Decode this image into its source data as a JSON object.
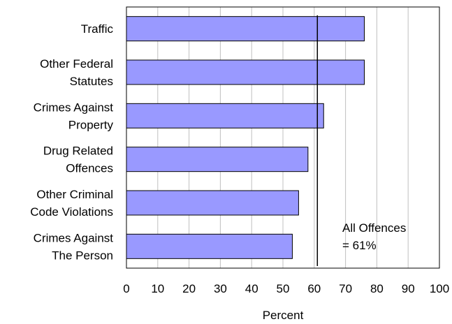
{
  "chart_data": {
    "type": "bar",
    "orientation": "horizontal",
    "categories": [
      [
        "Traffic"
      ],
      [
        "Other Federal",
        "Statutes"
      ],
      [
        "Crimes Against",
        "Property"
      ],
      [
        "Drug Related",
        "Offences"
      ],
      [
        "Other Criminal",
        "Code Violations"
      ],
      [
        "Crimes Against",
        "The Person"
      ]
    ],
    "values": [
      76,
      76,
      63,
      58,
      55,
      53
    ],
    "xlabel": "Percent",
    "ylabel": "",
    "xlim": [
      0,
      100
    ],
    "xticks": [
      0,
      10,
      20,
      30,
      40,
      50,
      60,
      70,
      80,
      90,
      100
    ],
    "grid": "vertical",
    "bar_color": "#9999ff",
    "reference_line": {
      "value": 61,
      "label": [
        "All Offences",
        "= 61%"
      ]
    }
  }
}
